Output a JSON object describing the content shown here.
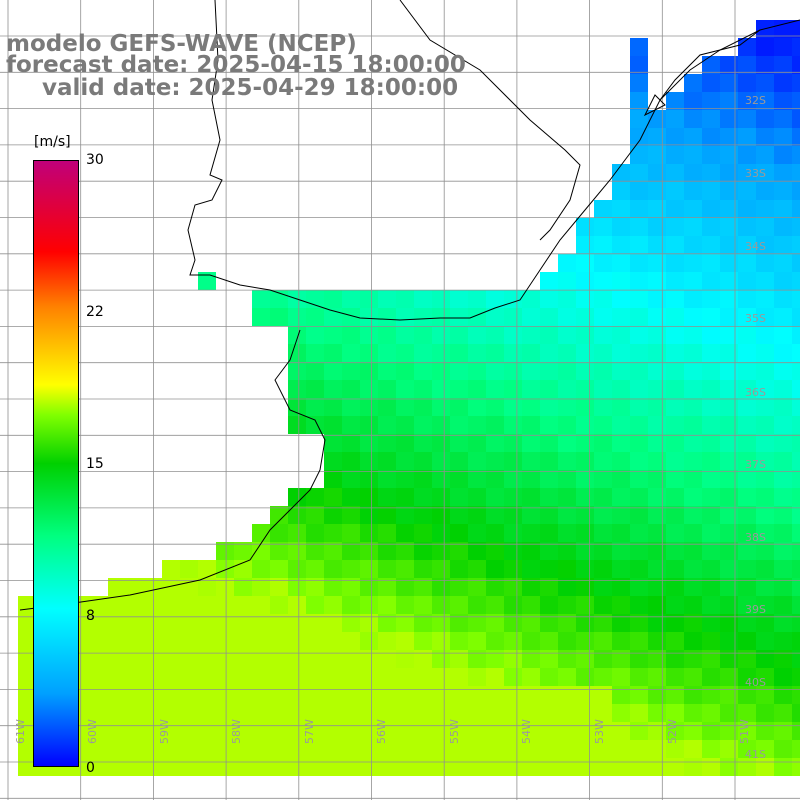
{
  "title": {
    "line1": "modelo GEFS-WAVE (NCEP)",
    "line2": "forecast date: 2025-04-15 18:00:00",
    "line3": "valid date: 2025-04-29 18:00:00"
  },
  "colorbar": {
    "unit": "[m/s]",
    "ticks": [
      {
        "label": "30",
        "value": 30
      },
      {
        "label": "22",
        "value": 22
      },
      {
        "label": "15",
        "value": 15
      },
      {
        "label": "8",
        "value": 8
      },
      {
        "label": "0",
        "value": 0
      }
    ],
    "range": [
      0,
      30
    ],
    "stops": [
      "#0000ff",
      "#00a0ff",
      "#00ffff",
      "#00ff80",
      "#00d000",
      "#80ff00",
      "#ffff00",
      "#ff8000",
      "#ff0000",
      "#c0007a"
    ]
  },
  "lat_labels": [
    "32S",
    "33S",
    "34S",
    "35S",
    "36S",
    "37S",
    "38S",
    "39S",
    "40S",
    "41S"
  ],
  "lon_labels": [
    "61W",
    "60W",
    "59W",
    "58W",
    "57W",
    "56W",
    "55W",
    "54W",
    "53W",
    "52W",
    "51W"
  ],
  "colors": {
    "land": "#ffffff",
    "coast": "#000000",
    "grid": "#909090",
    "arrow": "#ffffff"
  }
}
